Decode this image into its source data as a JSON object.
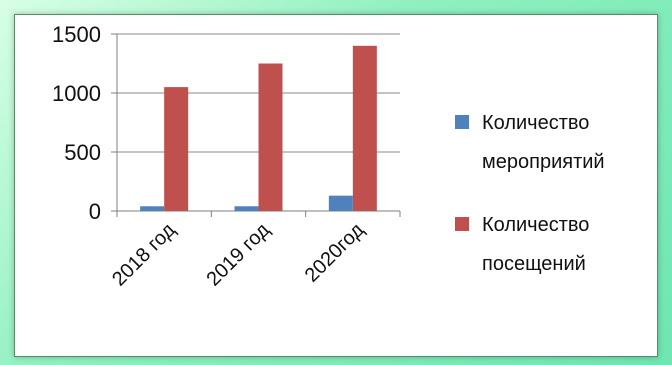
{
  "chart_data": {
    "type": "bar",
    "categories": [
      "2018 год",
      "2019 год",
      "2020год"
    ],
    "series": [
      {
        "name": "Количество мероприятий",
        "color": "#4f81bd",
        "values": [
          40,
          40,
          130
        ]
      },
      {
        "name": "Количество посещений",
        "color": "#c0504d",
        "values": [
          1050,
          1250,
          1400
        ]
      }
    ],
    "ylim": [
      0,
      1500
    ],
    "yticks": [
      0,
      500,
      1000,
      1500
    ],
    "legend_position": "right",
    "grid": true
  },
  "legend": {
    "items": [
      {
        "line1": "Количество",
        "line2": "мероприятий",
        "color": "#4f81bd"
      },
      {
        "line1": "Количество",
        "line2": "посещений",
        "color": "#c0504d"
      }
    ]
  }
}
